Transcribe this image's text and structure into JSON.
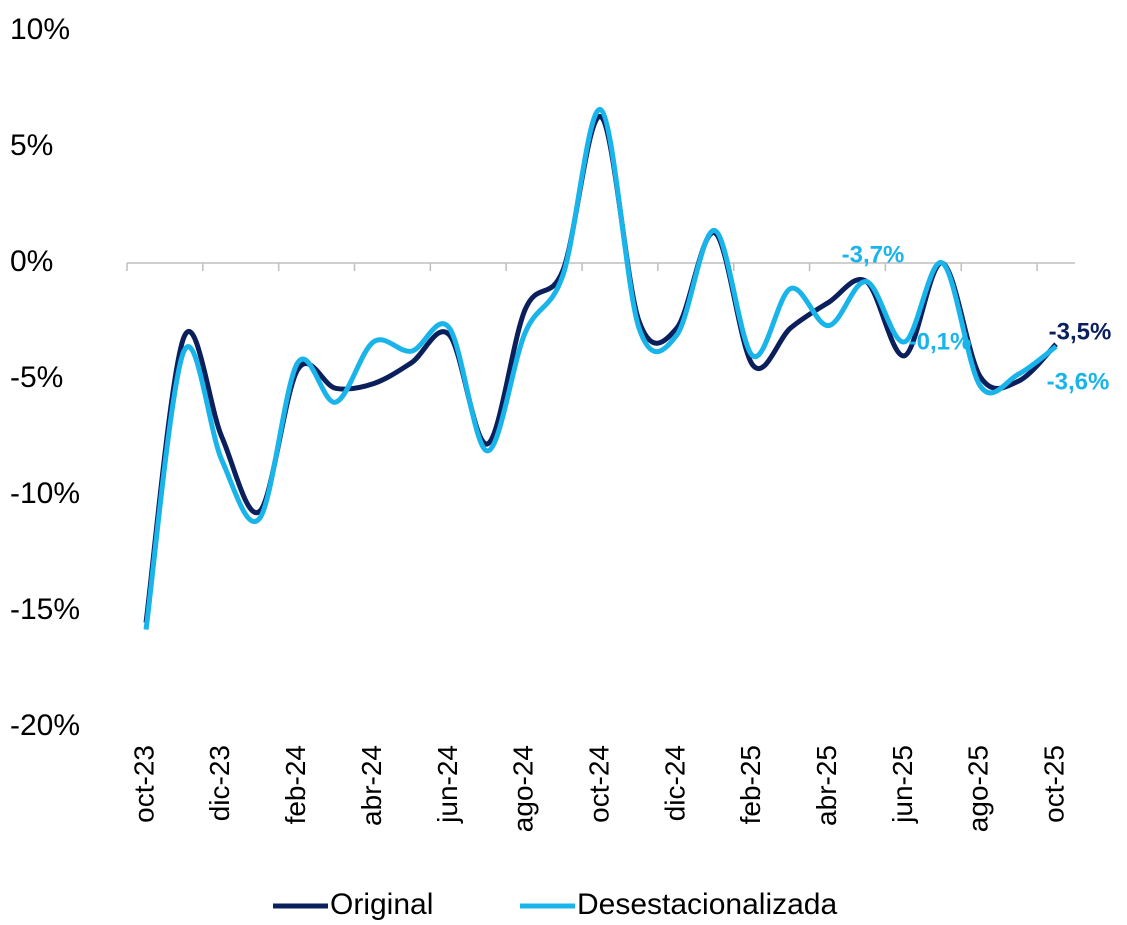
{
  "chart_data": {
    "type": "line",
    "categories": [
      "oct-23",
      null,
      "dic-23",
      null,
      "feb-24",
      null,
      "abr-24",
      null,
      "jun-24",
      null,
      "ago-24",
      null,
      "oct-24",
      null,
      "dic-24",
      null,
      "feb-25",
      null,
      "abr-25",
      null,
      "jun-25",
      null,
      "ago-25",
      null,
      "oct-25"
    ],
    "series": [
      {
        "name": "Original",
        "color": "#0b1f5c",
        "values": [
          -15.5,
          -3.2,
          -7.5,
          -10.7,
          -4.6,
          -5.4,
          -5.2,
          -4.3,
          -3.1,
          -7.8,
          -2.0,
          -0.3,
          6.3,
          -2.5,
          -2.8,
          1.3,
          -4.4,
          -2.8,
          -1.7,
          -0.8,
          -4.0,
          0.0,
          -4.9,
          -5.1,
          -3.5
        ],
        "value_labels": [
          null,
          null,
          null,
          null,
          null,
          null,
          null,
          null,
          null,
          null,
          null,
          null,
          null,
          null,
          null,
          null,
          null,
          null,
          null,
          null,
          null,
          null,
          null,
          null,
          "-3,5%"
        ]
      },
      {
        "name": "Desestacionalizada",
        "color": "#19b4ea",
        "values": [
          -15.8,
          -3.8,
          -8.5,
          -11.0,
          -4.3,
          -6.0,
          -3.4,
          -3.8,
          -2.8,
          -8.1,
          -3.0,
          -0.5,
          6.6,
          -2.8,
          -3.1,
          1.4,
          -4.0,
          -1.1,
          -2.7,
          -0.8,
          -3.4,
          0.0,
          -5.3,
          -4.8,
          -3.6
        ],
        "value_labels": [
          null,
          null,
          null,
          null,
          null,
          null,
          null,
          null,
          null,
          null,
          null,
          null,
          null,
          null,
          null,
          null,
          null,
          null,
          null,
          null,
          null,
          null,
          null,
          null,
          "-3,6%"
        ]
      }
    ],
    "annotations": [
      "-3,7%",
      "-0,1%"
    ],
    "ylim": [
      -20,
      10
    ],
    "yticks": [
      {
        "value": -20,
        "label": "-20%"
      },
      {
        "value": -15,
        "label": "-15%"
      },
      {
        "value": -10,
        "label": "-10%"
      },
      {
        "value": -5,
        "label": "-5%"
      },
      {
        "value": 0,
        "label": "0%"
      },
      {
        "value": 5,
        "label": "5%"
      },
      {
        "value": 10,
        "label": "10%"
      }
    ],
    "legend": "bottom"
  }
}
